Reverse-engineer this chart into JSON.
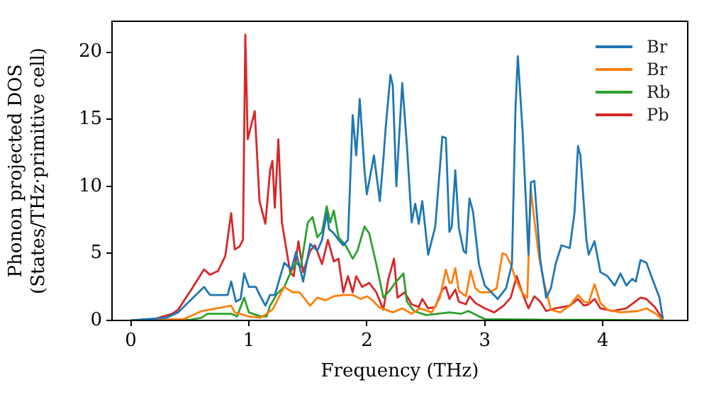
{
  "chart_data": {
    "type": "line",
    "xlabel": "Frequency (THz)",
    "ylabel": "Phonon projected DOS\n(States/THz·primitive cell)",
    "xlim": [
      -0.16,
      4.72
    ],
    "ylim": [
      0,
      22.3
    ],
    "xticks": [
      0,
      1,
      2,
      3,
      4
    ],
    "yticks": [
      0,
      5,
      10,
      15,
      20
    ],
    "grid": false,
    "legend": "top right",
    "marker": "none",
    "line_style": "solid",
    "series": [
      {
        "name": "Br",
        "color": "#1f77b4",
        "x": [
          0,
          0.3,
          0.4,
          0.62,
          0.67,
          0.82,
          0.85,
          0.89,
          0.93,
          0.96,
          1.0,
          1.06,
          1.08,
          1.14,
          1.18,
          1.22,
          1.3,
          1.36,
          1.4,
          1.46,
          1.52,
          1.58,
          1.62,
          1.66,
          1.68,
          1.72,
          1.76,
          1.8,
          1.84,
          1.88,
          1.91,
          1.94,
          1.98,
          2.0,
          2.06,
          2.11,
          2.14,
          2.16,
          2.2,
          2.22,
          2.25,
          2.3,
          2.34,
          2.38,
          2.41,
          2.44,
          2.47,
          2.52,
          2.58,
          2.64,
          2.67,
          2.7,
          2.72,
          2.75,
          2.78,
          2.82,
          2.84,
          2.87,
          2.9,
          2.95,
          3.0,
          3.11,
          3.18,
          3.23,
          3.26,
          3.28,
          3.32,
          3.37,
          3.39,
          3.42,
          3.47,
          3.52,
          3.56,
          3.6,
          3.65,
          3.72,
          3.76,
          3.79,
          3.81,
          3.86,
          3.88,
          3.93,
          3.98,
          4.04,
          4.1,
          4.15,
          4.2,
          4.25,
          4.28,
          4.32,
          4.37,
          4.42,
          4.48,
          4.51
        ],
        "values": [
          0,
          0.2,
          0.6,
          2.5,
          1.9,
          1.9,
          2.9,
          1.4,
          1.6,
          3.5,
          2.5,
          2.5,
          2.1,
          1.1,
          1.9,
          1.9,
          4.3,
          3.8,
          5.1,
          2.9,
          5.7,
          5.2,
          6.0,
          8.0,
          6.8,
          6.5,
          6.0,
          5.6,
          6.0,
          15.3,
          12.3,
          16.5,
          11.2,
          9.4,
          12.3,
          8.9,
          12.0,
          14.4,
          18.3,
          17.5,
          10.0,
          17.7,
          13.0,
          7.3,
          8.7,
          7.2,
          8.9,
          4.9,
          7.0,
          13.7,
          13.6,
          6.6,
          7.0,
          11.2,
          6.9,
          5.2,
          5.0,
          9.1,
          8.1,
          4.2,
          2.6,
          1.6,
          2.4,
          4.2,
          15.8,
          19.7,
          14.1,
          4.9,
          10.3,
          10.4,
          4.5,
          1.7,
          2.4,
          4.2,
          5.6,
          5.4,
          8.0,
          13.0,
          12.3,
          6.1,
          4.9,
          5.9,
          3.6,
          3.3,
          2.6,
          3.5,
          2.6,
          3.1,
          2.9,
          4.5,
          4.3,
          3.1,
          1.7,
          0.1
        ]
      },
      {
        "name": "Br",
        "color": "#ff7f0e",
        "x": [
          0,
          0.45,
          0.5,
          0.6,
          0.85,
          0.88,
          1.0,
          1.1,
          1.2,
          1.3,
          1.37,
          1.43,
          1.52,
          1.58,
          1.65,
          1.72,
          1.8,
          1.88,
          1.95,
          2.0,
          2.05,
          2.1,
          2.22,
          2.3,
          2.38,
          2.45,
          2.55,
          2.62,
          2.67,
          2.7,
          2.72,
          2.75,
          2.78,
          2.84,
          2.88,
          2.92,
          2.96,
          3.04,
          3.1,
          3.15,
          3.18,
          3.22,
          3.26,
          3.32,
          3.36,
          3.39,
          3.42,
          3.46,
          3.5,
          3.56,
          3.64,
          3.72,
          3.79,
          3.84,
          3.88,
          3.93,
          3.98,
          4.04,
          4.15,
          4.3,
          4.37,
          4.45,
          4.51
        ],
        "values": [
          0,
          0.1,
          0.3,
          0.7,
          1.1,
          0.6,
          0.3,
          0.2,
          0.8,
          2.5,
          2.1,
          2.1,
          1.1,
          1.7,
          1.5,
          1.8,
          1.9,
          1.9,
          1.6,
          1.8,
          1.5,
          1.0,
          0.6,
          0.9,
          0.5,
          0.9,
          0.6,
          1.7,
          3.8,
          2.8,
          2.8,
          3.9,
          2.2,
          1.8,
          3.7,
          2.4,
          2.1,
          2.1,
          2.4,
          5.0,
          4.9,
          4.2,
          3.1,
          2.0,
          1.7,
          9.8,
          7.5,
          4.7,
          2.9,
          0.8,
          0.6,
          1.1,
          1.9,
          1.4,
          1.3,
          2.7,
          1.3,
          0.8,
          0.6,
          0.7,
          0.9,
          0.5,
          0
        ]
      },
      {
        "name": "Rb",
        "color": "#2ca02c",
        "x": [
          0,
          0.5,
          0.6,
          0.65,
          0.85,
          0.9,
          0.96,
          1.0,
          1.1,
          1.15,
          1.18,
          1.24,
          1.3,
          1.36,
          1.4,
          1.44,
          1.5,
          1.54,
          1.58,
          1.62,
          1.66,
          1.69,
          1.72,
          1.76,
          1.82,
          1.88,
          1.92,
          1.98,
          2.02,
          2.08,
          2.14,
          2.2,
          2.24,
          2.31,
          2.34,
          2.4,
          2.5,
          2.6,
          2.7,
          2.8,
          2.86,
          2.95,
          3.0,
          3.5,
          4.0,
          4.51
        ],
        "values": [
          0,
          0.05,
          0.2,
          0.5,
          0.5,
          0.3,
          1.7,
          0.6,
          0.3,
          0.3,
          1.1,
          2.0,
          2.5,
          3.7,
          4.3,
          4.0,
          7.3,
          7.7,
          6.2,
          6.6,
          8.5,
          7.3,
          8.2,
          6.2,
          5.6,
          4.6,
          5.2,
          7.0,
          6.5,
          4.2,
          1.7,
          2.3,
          2.8,
          3.5,
          1.4,
          0.7,
          0.4,
          0.5,
          0.6,
          0.5,
          0.7,
          0.3,
          0.1,
          0.05,
          0.05,
          0
        ]
      },
      {
        "name": "Pb",
        "color": "#d62728",
        "x": [
          0,
          0.2,
          0.35,
          0.4,
          0.52,
          0.62,
          0.67,
          0.74,
          0.8,
          0.85,
          0.88,
          0.92,
          0.95,
          0.97,
          0.99,
          1.05,
          1.09,
          1.14,
          1.18,
          1.2,
          1.22,
          1.25,
          1.28,
          1.35,
          1.38,
          1.42,
          1.46,
          1.52,
          1.56,
          1.62,
          1.67,
          1.72,
          1.76,
          1.8,
          1.84,
          1.88,
          1.91,
          1.96,
          2.02,
          2.08,
          2.14,
          2.18,
          2.23,
          2.26,
          2.32,
          2.38,
          2.44,
          2.47,
          2.52,
          2.58,
          2.64,
          2.67,
          2.7,
          2.75,
          2.78,
          2.84,
          2.87,
          2.92,
          3.0,
          3.08,
          3.16,
          3.22,
          3.27,
          3.32,
          3.37,
          3.42,
          3.47,
          3.52,
          3.6,
          3.72,
          3.79,
          3.84,
          3.88,
          3.93,
          3.98,
          4.08,
          4.2,
          4.32,
          4.37,
          4.44,
          4.51
        ],
        "values": [
          0,
          0.1,
          0.5,
          0.8,
          2.4,
          3.8,
          3.4,
          3.7,
          4.8,
          8.0,
          5.3,
          5.5,
          6.0,
          21.3,
          13.5,
          15.6,
          8.9,
          7.2,
          11.2,
          11.9,
          8.4,
          13.5,
          7.3,
          3.6,
          3.3,
          5.9,
          3.6,
          5.2,
          5.6,
          4.2,
          6.0,
          4.4,
          4.6,
          2.1,
          3.3,
          2.1,
          3.3,
          2.5,
          2.8,
          2.1,
          0.8,
          3.0,
          4.6,
          1.7,
          2.1,
          1.2,
          1.0,
          1.6,
          0.9,
          1.0,
          2.3,
          2.5,
          1.6,
          2.3,
          1.4,
          1.2,
          1.8,
          1.3,
          0.9,
          0.6,
          1.1,
          1.7,
          3.3,
          2.0,
          0.9,
          1.8,
          1.4,
          0.7,
          0.9,
          1.1,
          1.6,
          1.1,
          1.2,
          1.6,
          0.9,
          0.7,
          0.9,
          1.7,
          1.6,
          1.0,
          0.1
        ]
      }
    ]
  }
}
